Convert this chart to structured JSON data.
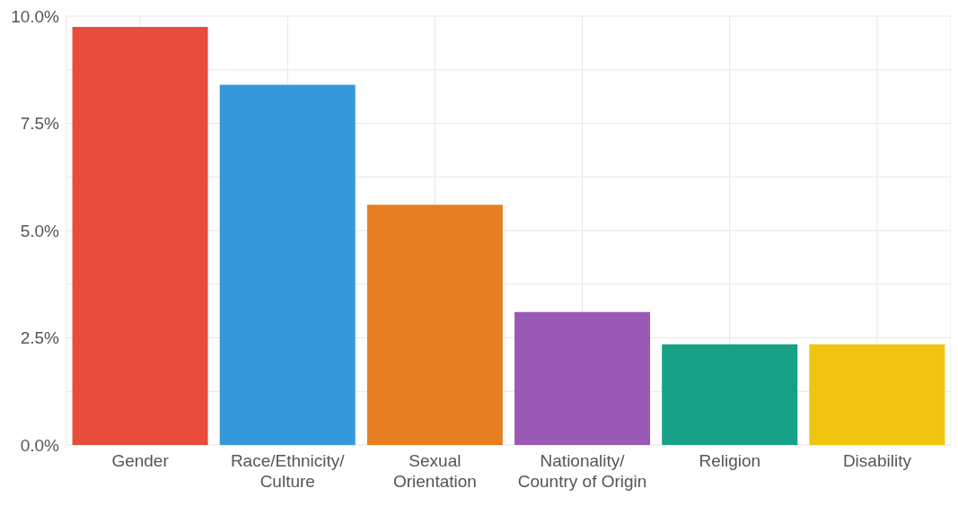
{
  "chart_data": {
    "type": "bar",
    "categories": [
      "Gender",
      "Race/Ethnicity/\nCulture",
      "Sexual\nOrientation",
      "Nationality/\nCountry of Origin",
      "Religion",
      "Disability"
    ],
    "values": [
      9.75,
      8.4,
      5.6,
      3.1,
      2.35,
      2.35
    ],
    "colors": [
      "#e74c3c",
      "#3498db",
      "#e67e22",
      "#9b59b6",
      "#16a085",
      "#f1c40f"
    ],
    "ylim": [
      0,
      10
    ],
    "yticks": [
      {
        "value": 0,
        "label": "0.0%"
      },
      {
        "value": 1.25,
        "label": null
      },
      {
        "value": 2.5,
        "label": "2.5%"
      },
      {
        "value": 3.75,
        "label": null
      },
      {
        "value": 5,
        "label": "5.0%"
      },
      {
        "value": 6.25,
        "label": null
      },
      {
        "value": 7.5,
        "label": "7.5%"
      },
      {
        "value": 8.75,
        "label": null
      },
      {
        "value": 10,
        "label": "10.0%"
      }
    ],
    "grid": true
  }
}
